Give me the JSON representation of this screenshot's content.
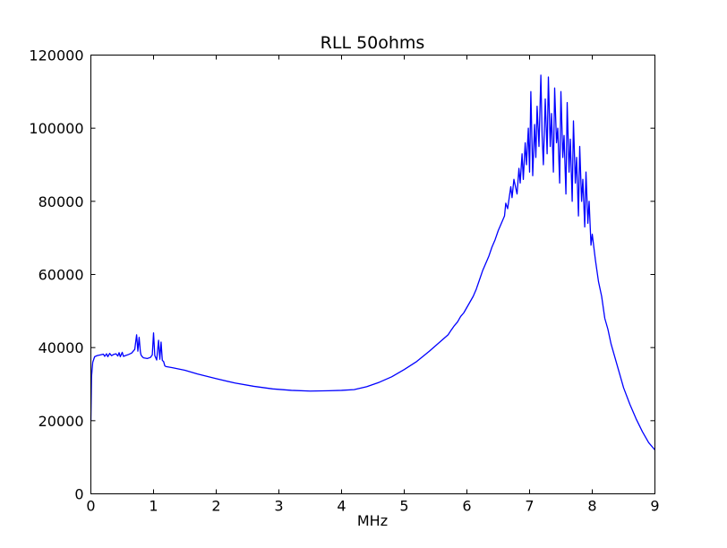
{
  "chart_data": {
    "type": "line",
    "title": "RLL 50ohms",
    "xlabel": "MHz",
    "ylabel": "",
    "xlim": [
      0,
      9
    ],
    "ylim": [
      0,
      120000
    ],
    "grid": false,
    "line_color": "#0000ff",
    "x_ticks": [
      "0",
      "1",
      "2",
      "3",
      "4",
      "5",
      "6",
      "7",
      "8",
      "9"
    ],
    "y_ticks": [
      "0",
      "20000",
      "40000",
      "60000",
      "80000",
      "100000",
      "120000"
    ],
    "series": [
      {
        "x": [
          0.0,
          0.01,
          0.03,
          0.06,
          0.1,
          0.15,
          0.2,
          0.22,
          0.25,
          0.27,
          0.3,
          0.33,
          0.36,
          0.4,
          0.43,
          0.45,
          0.47,
          0.5,
          0.52,
          0.55,
          0.6,
          0.65,
          0.7,
          0.73,
          0.75,
          0.77,
          0.79,
          0.8,
          0.82,
          0.84,
          0.9,
          0.95,
          0.98,
          1.0,
          1.02,
          1.05,
          1.08,
          1.1,
          1.12,
          1.14,
          1.16,
          1.18,
          1.2,
          1.3,
          1.5,
          1.7,
          2.0,
          2.3,
          2.6,
          2.9,
          3.2,
          3.5,
          3.8,
          4.0,
          4.2,
          4.4,
          4.6,
          4.8,
          5.0,
          5.2,
          5.4,
          5.5,
          5.6,
          5.7,
          5.75,
          5.8,
          5.85,
          5.9,
          5.95,
          6.0,
          6.05,
          6.1,
          6.15,
          6.2,
          6.25,
          6.3,
          6.35,
          6.4,
          6.45,
          6.5,
          6.55,
          6.6,
          6.62,
          6.65,
          6.7,
          6.72,
          6.75,
          6.8,
          6.83,
          6.85,
          6.88,
          6.9,
          6.93,
          6.95,
          6.98,
          7.0,
          7.02,
          7.05,
          7.08,
          7.1,
          7.12,
          7.15,
          7.18,
          7.2,
          7.22,
          7.25,
          7.28,
          7.3,
          7.33,
          7.35,
          7.38,
          7.4,
          7.43,
          7.45,
          7.48,
          7.5,
          7.53,
          7.55,
          7.58,
          7.6,
          7.63,
          7.65,
          7.68,
          7.7,
          7.73,
          7.75,
          7.78,
          7.8,
          7.83,
          7.85,
          7.88,
          7.9,
          7.93,
          7.95,
          7.98,
          8.0,
          8.05,
          8.1,
          8.15,
          8.2,
          8.25,
          8.3,
          8.35,
          8.4,
          8.45,
          8.5,
          8.6,
          8.7,
          8.8,
          8.9,
          9.0
        ],
        "y": [
          20000,
          32000,
          36000,
          37500,
          37800,
          38000,
          38200,
          37600,
          38300,
          37500,
          38400,
          37800,
          38100,
          38300,
          37700,
          38600,
          37500,
          38700,
          37600,
          37800,
          38100,
          38500,
          39500,
          43500,
          39000,
          42800,
          38800,
          38000,
          37500,
          37200,
          37000,
          37300,
          38000,
          44000,
          37800,
          36600,
          42000,
          36800,
          41500,
          36500,
          36200,
          35000,
          34800,
          34500,
          33800,
          32800,
          31500,
          30300,
          29400,
          28700,
          28300,
          28100,
          28200,
          28300,
          28500,
          29300,
          30500,
          32000,
          34000,
          36200,
          39000,
          40500,
          42000,
          43500,
          44800,
          46000,
          47000,
          48500,
          49500,
          51000,
          52500,
          54000,
          56000,
          58500,
          61000,
          63000,
          65000,
          67500,
          69500,
          72000,
          74000,
          76000,
          79500,
          78000,
          84000,
          81000,
          86000,
          82000,
          89000,
          85000,
          93000,
          86000,
          96000,
          90000,
          100000,
          88000,
          110000,
          87000,
          101000,
          92000,
          106000,
          95000,
          114500,
          98000,
          90000,
          108000,
          93000,
          114000,
          95000,
          104000,
          88000,
          111000,
          96000,
          100000,
          85000,
          110000,
          92000,
          98000,
          82000,
          107000,
          88000,
          97000,
          80000,
          102000,
          85000,
          92000,
          76000,
          95000,
          80000,
          86000,
          73000,
          88000,
          74000,
          80000,
          68000,
          71000,
          64000,
          58000,
          54000,
          48000,
          45000,
          41000,
          38000,
          35000,
          32000,
          29000,
          24500,
          20500,
          17000,
          14000,
          12000
        ]
      }
    ]
  }
}
